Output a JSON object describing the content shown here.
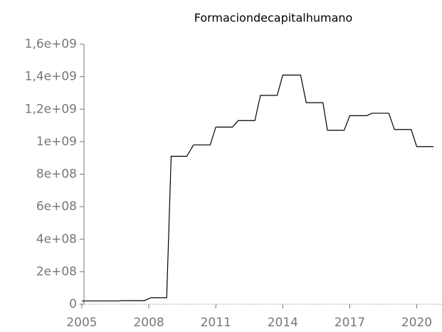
{
  "chart_data": {
    "type": "line",
    "title": "Formaciondecapitalhumano",
    "x": [
      2005.0,
      2006.7,
      2006.75,
      2007.8,
      2008.1,
      2008.8,
      2009.0,
      2009.7,
      2010.0,
      2010.75,
      2011.0,
      2011.75,
      2012.0,
      2012.75,
      2013.0,
      2013.75,
      2014.0,
      2014.8,
      2015.05,
      2015.8,
      2016.0,
      2016.75,
      2017.0,
      2017.75,
      2018.0,
      2018.75,
      2019.0,
      2019.75,
      2020.0,
      2020.75
    ],
    "series": [
      {
        "name": "Formaciondecapitalhumano",
        "color": "#000000",
        "values": [
          20000000,
          20000000,
          22000000,
          22000000,
          40000000,
          40000000,
          910000000,
          910000000,
          980000000,
          980000000,
          1090000000,
          1090000000,
          1130000000,
          1130000000,
          1285000000,
          1285000000,
          1410000000,
          1410000000,
          1240000000,
          1240000000,
          1070000000,
          1070000000,
          1160000000,
          1160000000,
          1175000000,
          1175000000,
          1075000000,
          1075000000,
          970000000,
          970000000
        ]
      }
    ],
    "xlim": [
      2005,
      2021.1
    ],
    "xticks": [
      2005,
      2008,
      2011,
      2014,
      2017,
      2020
    ],
    "ylim": [
      0,
      1600000000
    ],
    "yticks": [
      0,
      {
        "value": 200000000,
        "label": "2e+08"
      },
      {
        "value": 400000000,
        "label": "4e+08"
      },
      {
        "value": 600000000,
        "label": "6e+08"
      },
      {
        "value": 800000000,
        "label": "8e+08"
      },
      {
        "value": 1000000000,
        "label": "1e+09"
      },
      {
        "value": 1200000000,
        "label": "1,2e+09"
      },
      {
        "value": 1400000000,
        "label": "1,4e+09"
      },
      {
        "value": 1600000000,
        "label": "1,6e+09"
      }
    ],
    "grid": false
  }
}
